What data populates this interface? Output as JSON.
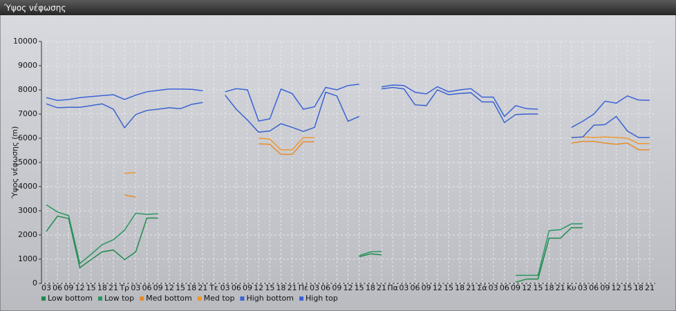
{
  "chart_data": {
    "type": "line",
    "title": "Ύψος νέφωσης",
    "y_label": "Ύψος νέφωσης (m)",
    "categories": [
      "03",
      "06",
      "09",
      "12",
      "15",
      "18",
      "21",
      "Τρ",
      "03",
      "06",
      "09",
      "12",
      "15",
      "18",
      "21",
      "Τε",
      "03",
      "06",
      "09",
      "12",
      "15",
      "18",
      "21",
      "Πέ",
      "03",
      "06",
      "09",
      "12",
      "15",
      "18",
      "21",
      "Πα",
      "03",
      "06",
      "09",
      "12",
      "15",
      "18",
      "21",
      "Σά",
      "03",
      "06",
      "09",
      "12",
      "15",
      "18",
      "21",
      "Κυ",
      "03",
      "06",
      "09",
      "12",
      "15",
      "18",
      "21"
    ],
    "ylim": [
      0,
      10000
    ],
    "yticks": [
      0,
      1000,
      2000,
      3000,
      4000,
      5000,
      6000,
      7000,
      8000,
      9000,
      10000
    ],
    "grid": true,
    "series": [
      {
        "name": "Low bottom",
        "color": "#1f8a4c",
        "values": [
          2150,
          2780,
          2680,
          650,
          980,
          1300,
          1380,
          980,
          1300,
          2700,
          2700,
          null,
          null,
          null,
          null,
          null,
          null,
          null,
          null,
          null,
          null,
          null,
          null,
          null,
          null,
          null,
          null,
          null,
          1100,
          1220,
          1180,
          null,
          null,
          null,
          null,
          null,
          null,
          null,
          null,
          null,
          null,
          null,
          50,
          180,
          180,
          1870,
          1870,
          2300,
          2300,
          null,
          null,
          null,
          null,
          null,
          null
        ]
      },
      {
        "name": "Low top",
        "color": "#2a9660",
        "values": [
          3250,
          2950,
          2800,
          820,
          1200,
          1600,
          1800,
          2200,
          2900,
          2850,
          2880,
          null,
          null,
          null,
          null,
          null,
          null,
          null,
          null,
          null,
          null,
          null,
          null,
          null,
          null,
          null,
          null,
          null,
          1150,
          1300,
          1320,
          null,
          null,
          null,
          null,
          null,
          null,
          null,
          null,
          null,
          null,
          null,
          330,
          330,
          330,
          2180,
          2220,
          2460,
          2460,
          null,
          null,
          null,
          null,
          null,
          null
        ]
      },
      {
        "name": "Med bottom",
        "color": "#e88a2a",
        "values": [
          null,
          null,
          null,
          null,
          null,
          null,
          null,
          3650,
          3570,
          null,
          null,
          null,
          null,
          null,
          null,
          null,
          null,
          null,
          null,
          5770,
          5750,
          5330,
          5330,
          5850,
          5850,
          null,
          null,
          null,
          null,
          null,
          null,
          null,
          null,
          null,
          null,
          null,
          null,
          null,
          null,
          null,
          null,
          null,
          null,
          null,
          null,
          null,
          null,
          5800,
          5870,
          5870,
          5800,
          5750,
          5800,
          5520,
          5520
        ]
      },
      {
        "name": "Med top",
        "color": "#f0962e",
        "values": [
          null,
          null,
          null,
          null,
          null,
          null,
          null,
          4550,
          4580,
          null,
          null,
          null,
          null,
          null,
          null,
          null,
          null,
          null,
          null,
          6000,
          5970,
          5520,
          5520,
          6020,
          6020,
          null,
          null,
          null,
          null,
          null,
          null,
          null,
          null,
          null,
          null,
          null,
          null,
          null,
          null,
          null,
          null,
          null,
          null,
          null,
          null,
          null,
          null,
          6030,
          6050,
          6030,
          6050,
          6030,
          6000,
          5780,
          5780
        ]
      },
      {
        "name": "High bottom",
        "color": "#3a62d0",
        "values": [
          7420,
          7260,
          7280,
          7280,
          7350,
          7420,
          7200,
          6430,
          6980,
          7150,
          7200,
          7260,
          7220,
          7400,
          7480,
          null,
          7780,
          7200,
          6750,
          6250,
          6300,
          6600,
          6450,
          6280,
          6450,
          7900,
          7750,
          6700,
          6900,
          null,
          8040,
          8100,
          8040,
          7380,
          7350,
          8000,
          7800,
          7850,
          7880,
          7500,
          7500,
          6650,
          6980,
          7000,
          7000,
          null,
          null,
          6030,
          6050,
          6540,
          6560,
          6900,
          6300,
          6030,
          6030
        ]
      },
      {
        "name": "High top",
        "color": "#3a62d8",
        "values": [
          7680,
          7560,
          7600,
          7680,
          7720,
          7760,
          7800,
          7600,
          7780,
          7920,
          7980,
          8030,
          8030,
          8020,
          7960,
          null,
          7920,
          8050,
          8000,
          6710,
          6800,
          8030,
          7850,
          7200,
          7300,
          8100,
          8000,
          8180,
          8230,
          null,
          8120,
          8200,
          8180,
          7900,
          7830,
          8130,
          7920,
          8000,
          8050,
          7700,
          7700,
          6900,
          7350,
          7220,
          7200,
          null,
          null,
          6450,
          6700,
          7000,
          7530,
          7450,
          7750,
          7580,
          7570
        ]
      }
    ]
  }
}
